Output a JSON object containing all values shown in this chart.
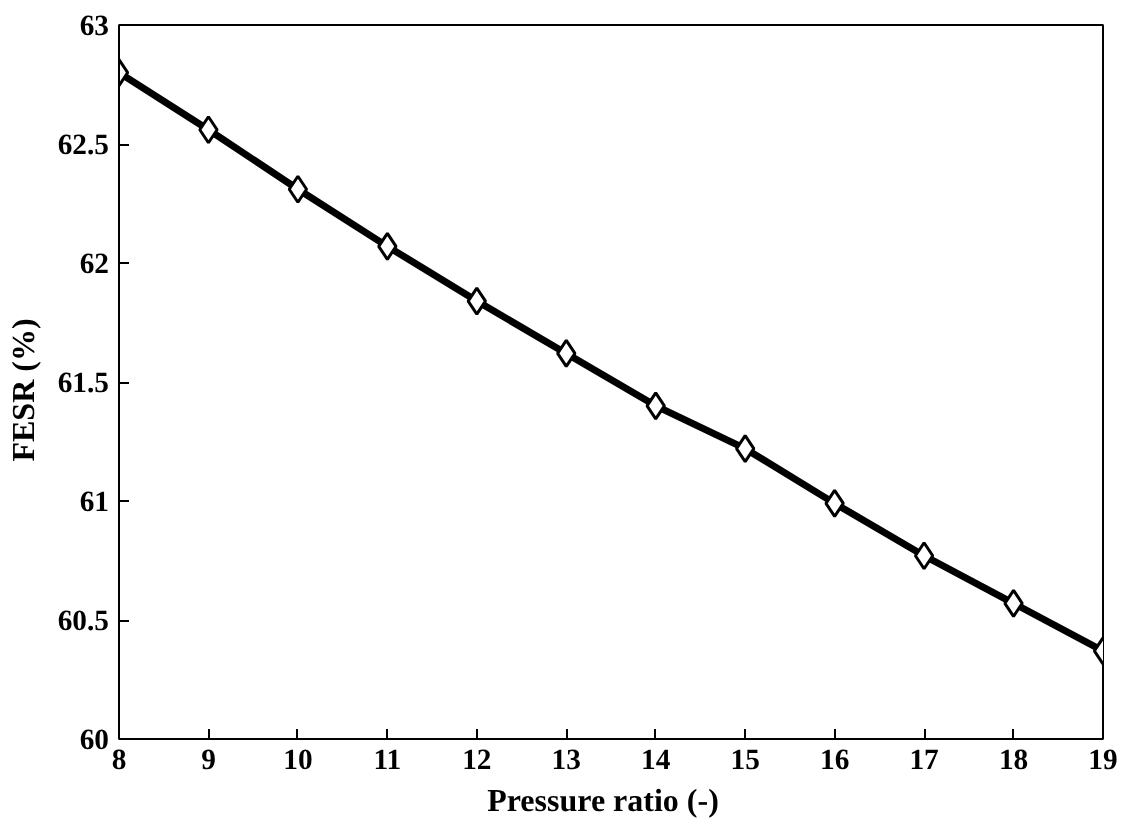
{
  "chart_data": {
    "type": "line",
    "xlabel": "Pressure ratio   (-)",
    "ylabel": "FESR   (%)",
    "x": [
      8,
      9,
      10,
      11,
      12,
      13,
      14,
      15,
      16,
      17,
      18,
      19
    ],
    "series": [
      {
        "color": "#000000",
        "values": [
          62.8,
          62.56,
          62.31,
          62.07,
          61.84,
          61.62,
          61.4,
          61.22,
          60.99,
          60.77,
          60.57,
          60.37
        ]
      }
    ],
    "xlim": [
      8,
      19
    ],
    "xticks": [
      8,
      9,
      10,
      11,
      12,
      13,
      14,
      15,
      16,
      17,
      18,
      19
    ],
    "ylim": [
      60,
      63
    ],
    "yticks": [
      60,
      {
        "value": 60.5,
        "label": "60.5"
      },
      61,
      {
        "value": 61.5,
        "label": "61.5"
      },
      62,
      {
        "value": 62.5,
        "label": "62.5"
      },
      63
    ],
    "grid": false,
    "marker": "diamond",
    "line_style": "solid"
  }
}
